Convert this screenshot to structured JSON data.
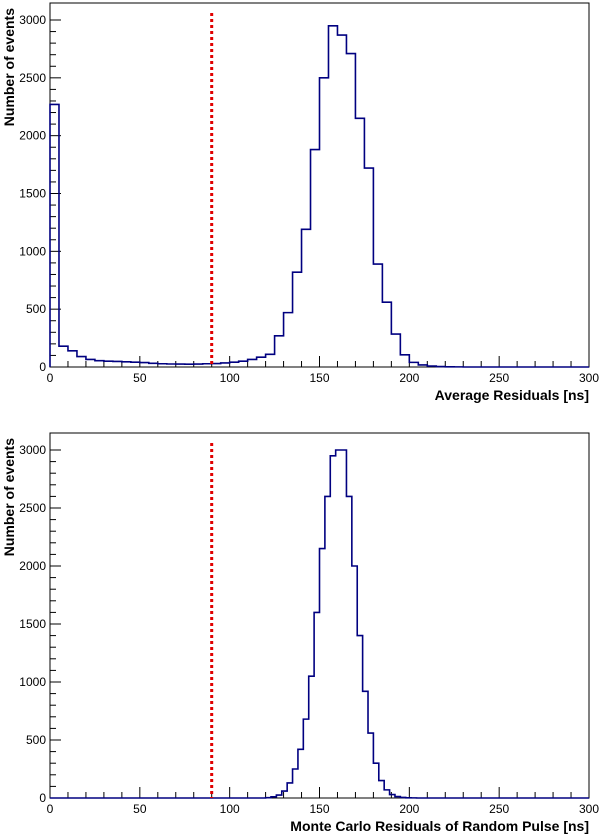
{
  "chart_data": [
    {
      "type": "histogram",
      "xlabel": "Average Residuals [ns]",
      "ylabel": "Number of events",
      "xlim": [
        0,
        300
      ],
      "ylim": [
        0,
        3000
      ],
      "x_ticks": [
        0,
        50,
        100,
        150,
        200,
        250,
        300
      ],
      "y_ticks": [
        0,
        500,
        1000,
        1500,
        2000,
        2500,
        3000
      ],
      "bin_width": 5,
      "bin_start": 0,
      "values": [
        2270,
        180,
        140,
        90,
        65,
        55,
        50,
        48,
        45,
        42,
        38,
        32,
        28,
        26,
        25,
        24,
        25,
        28,
        30,
        35,
        42,
        50,
        65,
        85,
        110,
        270,
        470,
        820,
        1190,
        1880,
        2500,
        2950,
        2870,
        2710,
        2150,
        1720,
        890,
        560,
        285,
        105,
        40,
        18,
        8,
        4,
        2,
        1,
        0,
        0,
        0,
        0,
        0,
        0,
        0,
        0,
        0,
        0,
        0,
        0,
        0,
        0
      ],
      "line_color": "#000080",
      "cut_line": {
        "x": 90,
        "color": "#e00000"
      }
    },
    {
      "type": "histogram",
      "xlabel": "Monte Carlo Residuals of Random Pulse [ns]",
      "ylabel": "Number of events",
      "xlim": [
        0,
        300
      ],
      "ylim": [
        0,
        3000
      ],
      "x_ticks": [
        0,
        50,
        100,
        150,
        200,
        250,
        300
      ],
      "y_ticks": [
        0,
        500,
        1000,
        1500,
        2000,
        2500,
        3000
      ],
      "bin_width": 3,
      "bin_start": 0,
      "values": [
        0,
        0,
        0,
        0,
        0,
        0,
        0,
        0,
        0,
        0,
        0,
        0,
        0,
        0,
        0,
        0,
        0,
        0,
        0,
        0,
        0,
        0,
        0,
        0,
        0,
        0,
        0,
        0,
        0,
        0,
        0,
        0,
        0,
        0,
        0,
        0,
        0,
        0,
        0,
        0,
        3,
        10,
        25,
        60,
        130,
        250,
        420,
        680,
        1050,
        1600,
        2150,
        2600,
        2950,
        3080,
        3000,
        2600,
        2000,
        1400,
        920,
        560,
        300,
        150,
        70,
        30,
        12,
        5,
        2,
        1,
        0,
        0,
        0,
        0,
        0,
        0,
        0,
        0,
        0,
        0,
        0,
        0,
        0,
        0,
        0,
        0,
        0,
        0,
        0,
        0,
        0,
        0,
        0,
        0,
        0,
        0,
        0,
        0,
        0,
        0,
        0,
        0
      ],
      "line_color": "#000080",
      "cut_line": {
        "x": 90,
        "color": "#e00000"
      }
    }
  ]
}
